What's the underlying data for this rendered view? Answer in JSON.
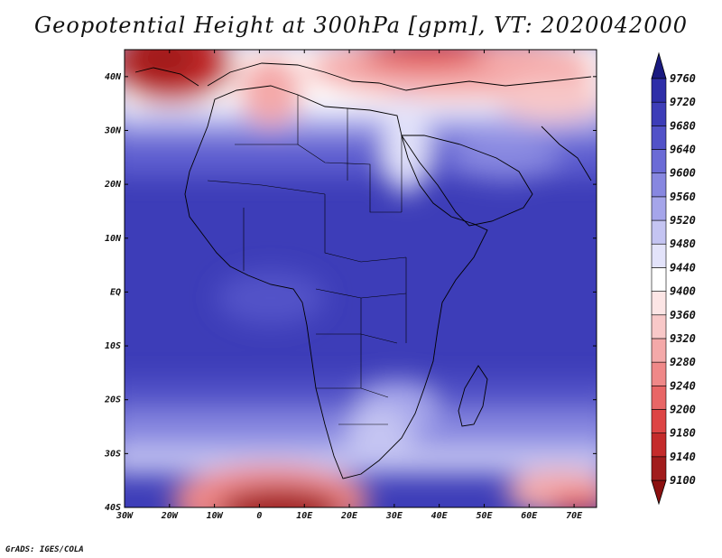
{
  "title": "Geopotential Height at 300hPa [gpm], VT: 2020042000",
  "credit": "GrADS: IGES/COLA",
  "lon_labels": [
    "30W",
    "20W",
    "10W",
    "0",
    "10E",
    "20E",
    "30E",
    "40E",
    "50E",
    "60E",
    "70E"
  ],
  "lat_labels": [
    "40N",
    "30N",
    "20N",
    "10N",
    "EQ",
    "10S",
    "20S",
    "30S",
    "40S"
  ],
  "colorbar": {
    "levels": [
      "9100",
      "9140",
      "9180",
      "9200",
      "9240",
      "9280",
      "9320",
      "9360",
      "9400",
      "9440",
      "9480",
      "9520",
      "9560",
      "9600",
      "9640",
      "9680",
      "9720",
      "9760"
    ],
    "colors": [
      "#a11c1c",
      "#c42b2b",
      "#dd4545",
      "#e86666",
      "#ef8888",
      "#f4a9a9",
      "#f8c8c8",
      "#fce5e5",
      "#ffffff",
      "#e3e3fa",
      "#c4c4f2",
      "#a5a5ea",
      "#8787e0",
      "#6b6bd6",
      "#5252c8",
      "#3d3db8",
      "#2e2ea8",
      "#202090"
    ],
    "lowest_color": "#8b1010",
    "highest_color": "#1a1a80"
  },
  "map_extent": {
    "lon_range": [
      -30,
      75
    ],
    "lat_range": [
      -40,
      45
    ]
  },
  "chart_data": {
    "type": "heatmap",
    "title": "Geopotential Height at 300hPa [gpm], VT: 2020042000",
    "units": "gpm",
    "x_range": [
      -30,
      75
    ],
    "y_range": [
      -40,
      45
    ],
    "color_levels": [
      9100,
      9140,
      9180,
      9200,
      9240,
      9280,
      9320,
      9360,
      9400,
      9440,
      9480,
      9520,
      9560,
      9600,
      9640,
      9680,
      9720,
      9760
    ]
  }
}
